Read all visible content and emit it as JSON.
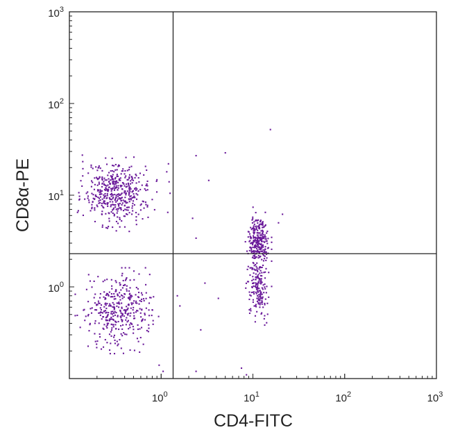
{
  "chart_data": {
    "type": "scatter",
    "xscale": "log",
    "yscale": "log",
    "xlabel": "CD4-FITC",
    "ylabel": "CD8α-PE",
    "xlim": [
      0.1,
      1000
    ],
    "ylim": [
      0.1,
      1000
    ],
    "xticks": [
      {
        "value": 1,
        "base": "10",
        "exp": "0"
      },
      {
        "value": 10,
        "base": "10",
        "exp": "1"
      },
      {
        "value": 100,
        "base": "10",
        "exp": "2"
      },
      {
        "value": 1000,
        "base": "10",
        "exp": "3"
      }
    ],
    "yticks": [
      {
        "value": 1,
        "base": "10",
        "exp": "0"
      },
      {
        "value": 10,
        "base": "10",
        "exp": "1"
      },
      {
        "value": 100,
        "base": "10",
        "exp": "2"
      },
      {
        "value": 1000,
        "base": "10",
        "exp": "3"
      }
    ],
    "quadrant_gates": {
      "x": 1.35,
      "y": 2.3
    },
    "point_color": "#6a1a9a",
    "axis_color": "#222222",
    "grid": false,
    "legend": "none",
    "populations": [
      {
        "label": "CD4- CD8+",
        "center": [
          0.33,
          10.5
        ],
        "spread": [
          0.17,
          0.16
        ],
        "count": 460
      },
      {
        "label": "CD4- CD8-",
        "center": [
          0.34,
          0.55
        ],
        "spread": [
          0.18,
          0.18
        ],
        "count": 380
      },
      {
        "label": "CD4+ CD8+",
        "center": [
          11.5,
          3.2
        ],
        "spread": [
          0.055,
          0.14
        ],
        "count": 270
      },
      {
        "label": "CD4+ CD8-",
        "center": [
          11.5,
          0.95
        ],
        "spread": [
          0.055,
          0.16
        ],
        "count": 160
      }
    ],
    "outliers": [
      {
        "x": 15.5,
        "y": 52
      },
      {
        "x": 5.0,
        "y": 29
      },
      {
        "x": 2.4,
        "y": 27
      },
      {
        "x": 3.3,
        "y": 14.5
      },
      {
        "x": 1.22,
        "y": 14
      },
      {
        "x": 1.2,
        "y": 22
      },
      {
        "x": 1.15,
        "y": 18
      },
      {
        "x": 1.25,
        "y": 10.5
      },
      {
        "x": 1.18,
        "y": 6.5
      },
      {
        "x": 2.2,
        "y": 5.6
      },
      {
        "x": 2.4,
        "y": 3.4
      },
      {
        "x": 21,
        "y": 6.2
      },
      {
        "x": 19,
        "y": 5.0
      },
      {
        "x": 1.5,
        "y": 0.8
      },
      {
        "x": 4.2,
        "y": 0.75
      },
      {
        "x": 1.6,
        "y": 0.62
      },
      {
        "x": 2.7,
        "y": 0.34
      },
      {
        "x": 2.4,
        "y": 0.12
      },
      {
        "x": 1.05,
        "y": 0.12
      },
      {
        "x": 0.95,
        "y": 0.14
      },
      {
        "x": 7.5,
        "y": 0.13
      },
      {
        "x": 8.5,
        "y": 0.11
      },
      {
        "x": 3.0,
        "y": 1.1
      }
    ]
  }
}
